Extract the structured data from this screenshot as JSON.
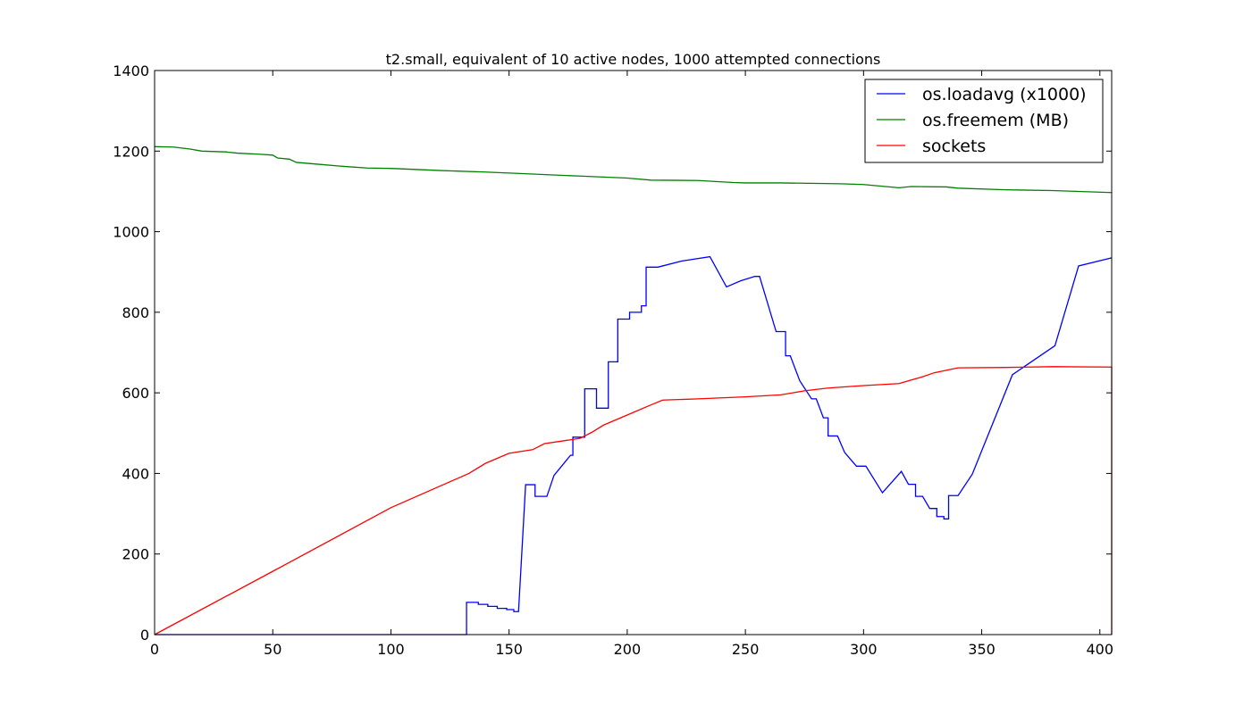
{
  "chart_data": {
    "type": "line",
    "title": "t2.small, equivalent of 10 active nodes, 1000 attempted connections",
    "xlabel": "",
    "ylabel": "",
    "xlim": [
      0,
      405
    ],
    "ylim": [
      0,
      1400
    ],
    "xticks": [
      0,
      50,
      100,
      150,
      200,
      250,
      300,
      350,
      400
    ],
    "yticks": [
      0,
      200,
      400,
      600,
      800,
      1000,
      1200,
      1400
    ],
    "grid": false,
    "legend_position": "top-right",
    "series": [
      {
        "name": "os.loadavg (x1000)",
        "color": "#0000ff",
        "x": [
          0,
          132,
          132,
          137,
          137,
          141,
          141,
          145,
          145,
          149,
          149,
          152,
          152,
          154,
          157,
          157,
          161,
          161,
          166,
          169,
          176,
          177,
          177,
          182,
          182,
          187,
          187,
          192,
          192,
          196,
          196,
          201,
          201,
          206,
          206,
          208,
          208,
          213,
          213,
          215,
          223,
          235,
          242,
          248,
          254,
          256,
          263,
          263,
          267,
          267,
          269,
          269,
          273,
          278,
          280,
          280,
          283,
          283,
          285,
          285,
          289,
          289,
          292,
          292,
          297,
          297,
          301,
          301,
          308,
          316,
          316,
          319,
          319,
          322,
          322,
          325,
          325,
          328,
          328,
          331,
          331,
          334,
          334,
          336,
          336,
          338,
          338,
          340,
          346,
          363,
          381,
          391,
          405
        ],
        "y": [
          0,
          0,
          80,
          80,
          75,
          75,
          70,
          70,
          65,
          65,
          62,
          62,
          57,
          57,
          372,
          372,
          372,
          343,
          343,
          395,
          445,
          445,
          490,
          490,
          610,
          610,
          562,
          562,
          677,
          677,
          783,
          783,
          800,
          800,
          816,
          816,
          912,
          912,
          912,
          915,
          927,
          938,
          863,
          878,
          889,
          889,
          752,
          752,
          752,
          692,
          692,
          692,
          630,
          585,
          585,
          585,
          538,
          538,
          538,
          493,
          493,
          493,
          452,
          452,
          418,
          418,
          418,
          418,
          352,
          405,
          405,
          373,
          373,
          373,
          343,
          343,
          343,
          313,
          313,
          313,
          293,
          293,
          287,
          287,
          345,
          345,
          345,
          345,
          398,
          645,
          717,
          915,
          935
        ]
      },
      {
        "name": "os.freemem (MB)",
        "color": "#008000",
        "x": [
          0,
          8,
          15,
          20,
          30,
          35,
          45,
          50,
          52,
          57,
          60,
          70,
          80,
          90,
          100,
          120,
          140,
          160,
          180,
          200,
          210,
          230,
          245,
          250,
          265,
          290,
          300,
          315,
          320,
          335,
          340,
          360,
          380,
          405
        ],
        "y": [
          1211,
          1210,
          1205,
          1200,
          1198,
          1195,
          1192,
          1190,
          1183,
          1180,
          1172,
          1167,
          1162,
          1158,
          1157,
          1152,
          1148,
          1143,
          1138,
          1133,
          1128,
          1127,
          1122,
          1121,
          1121,
          1119,
          1117,
          1109,
          1112,
          1111,
          1108,
          1104,
          1102,
          1097
        ]
      },
      {
        "name": "sockets",
        "color": "#ff0000",
        "x": [
          0,
          50,
          100,
          133,
          140,
          150,
          160,
          165,
          172,
          180,
          185,
          190,
          200,
          210,
          215,
          230,
          250,
          265,
          275,
          285,
          300,
          315,
          325,
          330,
          335,
          340,
          360,
          380,
          405,
          405
        ],
        "y": [
          0,
          157,
          315,
          400,
          425,
          450,
          459,
          474,
          480,
          487,
          502,
          520,
          545,
          570,
          582,
          585,
          590,
          595,
          605,
          612,
          618,
          623,
          640,
          650,
          656,
          662,
          663,
          665,
          664,
          0
        ]
      }
    ]
  }
}
